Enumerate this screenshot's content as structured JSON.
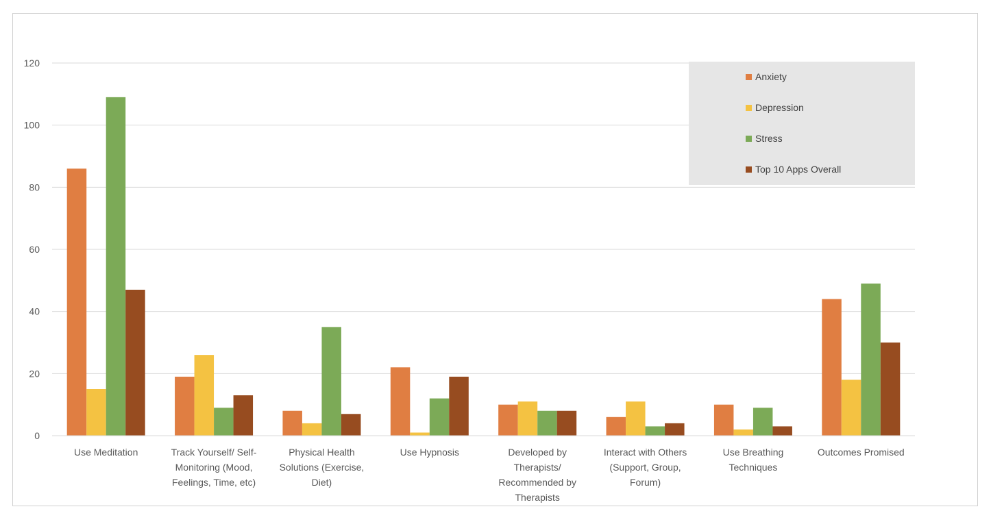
{
  "chart_data": {
    "type": "bar",
    "title": "",
    "xlabel": "",
    "ylabel": "",
    "ylim": [
      0,
      120
    ],
    "yticks": [
      0,
      20,
      40,
      60,
      80,
      100,
      120
    ],
    "grid": true,
    "legend_position": "top-right",
    "categories": [
      [
        "Use Meditation"
      ],
      [
        "Track Yourself/ Self-",
        "Monitoring (Mood,",
        "Feelings, Time, etc)"
      ],
      [
        "Physical Health",
        "Solutions (Exercise,",
        "Diet)"
      ],
      [
        "Use Hypnosis"
      ],
      [
        "Developed by",
        "Therapists/",
        "Recommended by",
        "Therapists"
      ],
      [
        "Interact with Others",
        "(Support, Group,",
        "Forum)"
      ],
      [
        "Use Breathing",
        "Techniques"
      ],
      [
        "Outcomes Promised"
      ]
    ],
    "series": [
      {
        "name": "Anxiety",
        "color": "#E07E42",
        "values": [
          86,
          19,
          8,
          22,
          10,
          6,
          10,
          44
        ]
      },
      {
        "name": "Depression",
        "color": "#F4C242",
        "values": [
          15,
          26,
          4,
          1,
          11,
          11,
          2,
          18
        ]
      },
      {
        "name": "Stress",
        "color": "#7CAA57",
        "values": [
          109,
          9,
          35,
          12,
          8,
          3,
          9,
          49
        ]
      },
      {
        "name": "Top 10 Apps Overall",
        "color": "#974C20",
        "values": [
          47,
          13,
          7,
          19,
          8,
          4,
          3,
          30
        ]
      }
    ]
  }
}
